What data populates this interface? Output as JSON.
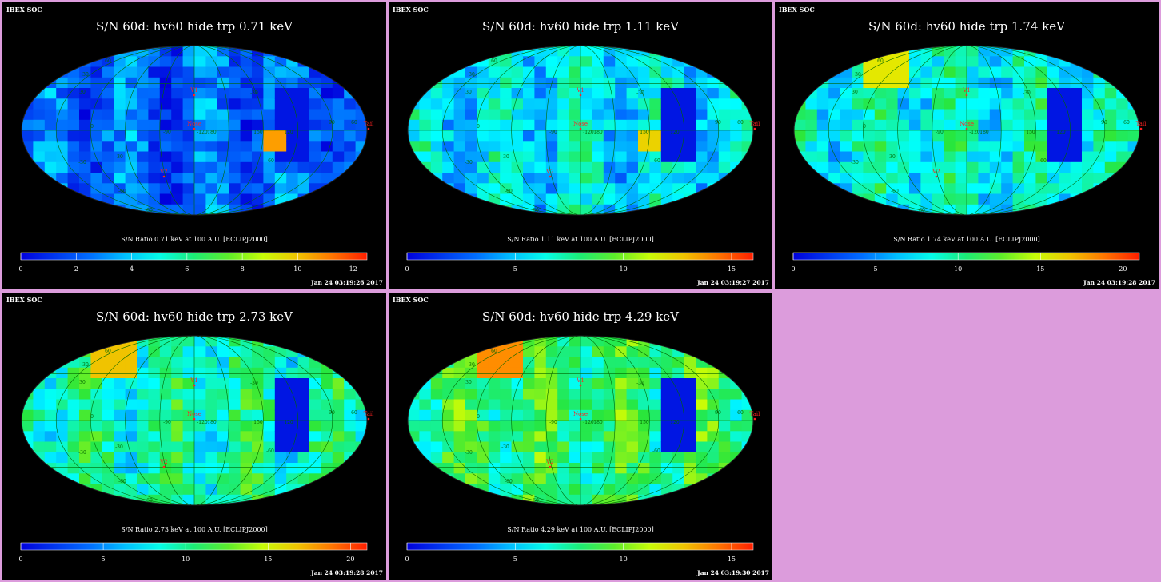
{
  "colors": {
    "background": "#000000",
    "frame": "#dc9cdc",
    "title": "#ffffff",
    "graticule": "#006600",
    "marker": "#ff2222"
  },
  "panels": [
    {
      "header": "IBEX SOC",
      "title": "S/N  60d: hv60 hide trp 0.71 keV",
      "colorbar_label": "S/N Ratio 0.71 keV at 100 A.U. [ECLIPJ2000]",
      "ticks": [
        "0",
        "2",
        "4",
        "6",
        "8",
        "10",
        "12"
      ],
      "timestamp": "Jan 24 03:19:26 2017",
      "level": 0.18
    },
    {
      "header": "IBEX SOC",
      "title": "S/N  60d: hv60 hide trp 1.11 keV",
      "colorbar_label": "S/N Ratio 1.11 keV at 100 A.U. [ECLIPJ2000]",
      "ticks": [
        "0",
        "5",
        "10",
        "15"
      ],
      "timestamp": "Jan 24 03:19:27 2017",
      "level": 0.35
    },
    {
      "header": "IBEX SOC",
      "title": "S/N  60d: hv60 hide trp 1.74 keV",
      "colorbar_label": "S/N Ratio 1.74 keV at 100 A.U. [ECLIPJ2000]",
      "ticks": [
        "0",
        "5",
        "10",
        "15",
        "20"
      ],
      "timestamp": "Jan 24 03:19:28 2017",
      "level": 0.4
    },
    {
      "header": "IBEX SOC",
      "title": "S/N  60d: hv60 hide trp 2.73 keV",
      "colorbar_label": "S/N Ratio 2.73 keV at 100 A.U. [ECLIPJ2000]",
      "ticks": [
        "0",
        "5",
        "10",
        "15",
        "20"
      ],
      "timestamp": "Jan 24 03:19:28 2017",
      "level": 0.45
    },
    {
      "header": "IBEX SOC",
      "title": "S/N  60d: hv60 hide trp 4.29 keV",
      "colorbar_label": "S/N Ratio 4.29 keV at 100 A.U. [ECLIPJ2000]",
      "ticks": [
        "0",
        "5",
        "10",
        "15"
      ],
      "timestamp": "Jan 24 03:19:30 2017",
      "level": 0.52
    }
  ],
  "map_labels": {
    "markers": [
      "V1",
      "V2",
      "Nose",
      "Tail"
    ],
    "graticule": [
      "60",
      "30",
      "0",
      "-30",
      "-60",
      "-90",
      "-120",
      "180",
      "150",
      "120",
      "90",
      "60",
      "-30",
      "-60",
      "-30",
      "30",
      "60"
    ]
  },
  "chart_data": [
    {
      "type": "heatmap",
      "title": "S/N  60d: hv60 hide trp 0.71 keV",
      "xlabel": "S/N Ratio 0.71 keV at 100 A.U. [ECLIPJ2000]",
      "colorbar_range": [
        0,
        12.5
      ]
    },
    {
      "type": "heatmap",
      "title": "S/N  60d: hv60 hide trp 1.11 keV",
      "xlabel": "S/N Ratio 1.11 keV at 100 A.U. [ECLIPJ2000]",
      "colorbar_range": [
        0,
        16
      ]
    },
    {
      "type": "heatmap",
      "title": "S/N  60d: hv60 hide trp 1.74 keV",
      "xlabel": "S/N Ratio 1.74 keV at 100 A.U. [ECLIPJ2000]",
      "colorbar_range": [
        0,
        21
      ]
    },
    {
      "type": "heatmap",
      "title": "S/N  60d: hv60 hide trp 2.73 keV",
      "xlabel": "S/N Ratio 2.73 keV at 100 A.U. [ECLIPJ2000]",
      "colorbar_range": [
        0,
        21
      ]
    },
    {
      "type": "heatmap",
      "title": "S/N  60d: hv60 hide trp 4.29 keV",
      "xlabel": "S/N Ratio 4.29 keV at 100 A.U. [ECLIPJ2000]",
      "colorbar_range": [
        0,
        16
      ]
    }
  ]
}
